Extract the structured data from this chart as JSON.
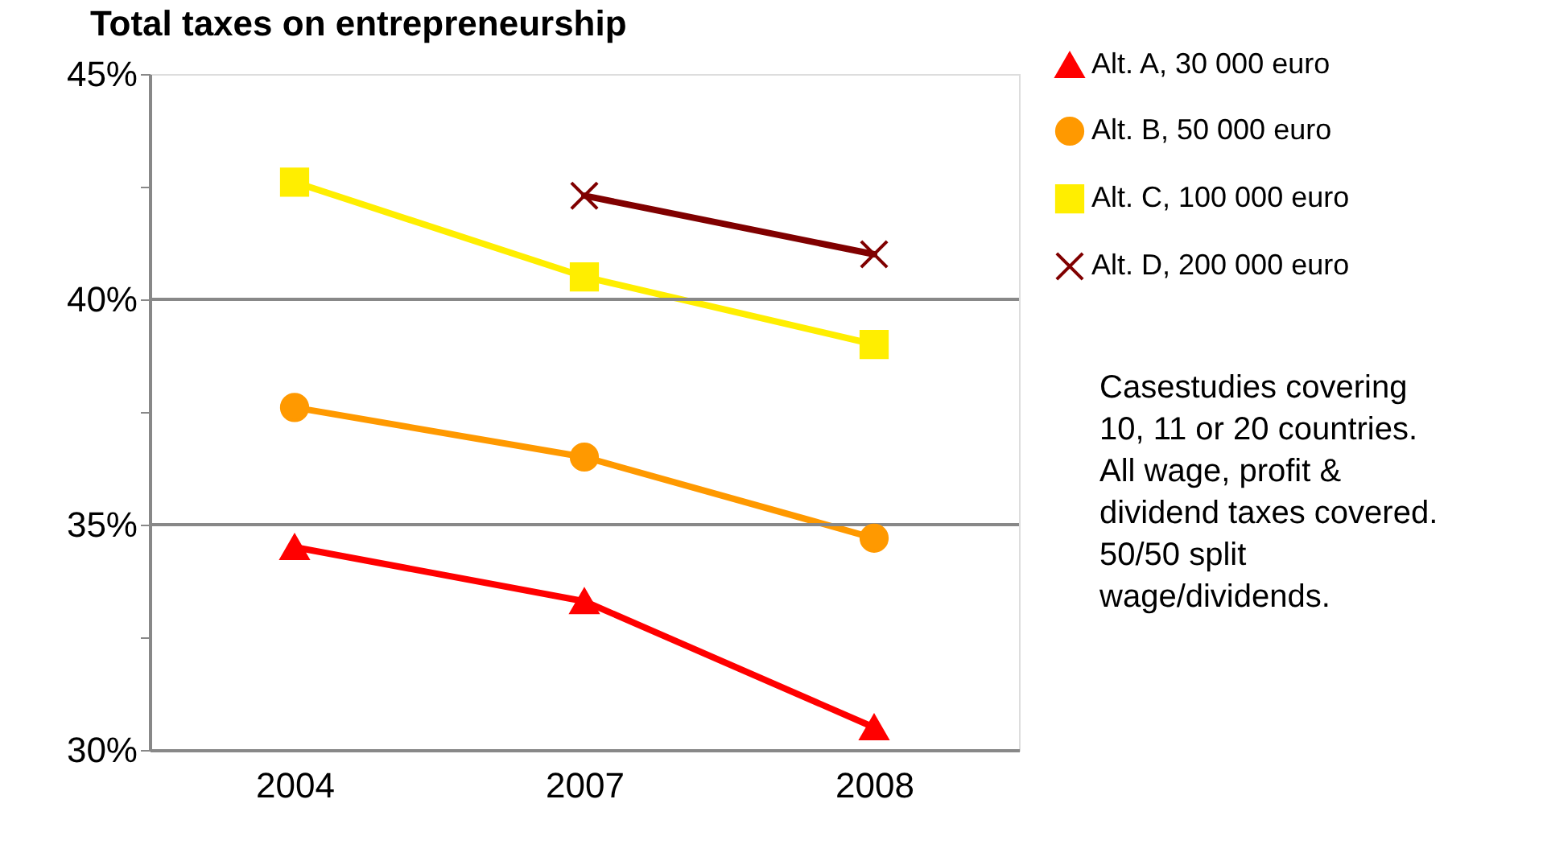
{
  "chart_data": {
    "type": "line",
    "title": "Total taxes on entrepreneurship",
    "categories": [
      "2004",
      "2007",
      "2008"
    ],
    "series": [
      {
        "name": "Alt. A, 30 000 euro",
        "color": "#ff0000",
        "marker": "triangle",
        "values": [
          34.5,
          33.3,
          30.5
        ]
      },
      {
        "name": "Alt. B, 50 000 euro",
        "color": "#ff9900",
        "marker": "circle",
        "values": [
          37.6,
          36.5,
          34.7
        ]
      },
      {
        "name": "Alt. C, 100 000 euro",
        "color": "#ffee00",
        "marker": "square",
        "values": [
          42.6,
          40.5,
          39.0
        ]
      },
      {
        "name": "Alt. D, 200 000 euro",
        "color": "#800000",
        "marker": "cross",
        "values": [
          null,
          42.3,
          41.0
        ]
      }
    ],
    "ylim": [
      30,
      45
    ],
    "yticks": [
      {
        "value": 30,
        "label": "30%"
      },
      {
        "value": 32.5,
        "label": null
      },
      {
        "value": 35,
        "label": "35%"
      },
      {
        "value": 37.5,
        "label": null
      },
      {
        "value": 40,
        "label": "40%"
      },
      {
        "value": 42.5,
        "label": null
      },
      {
        "value": 45,
        "label": "45%"
      }
    ],
    "grid": "y",
    "legend": "top right",
    "line_style": "solid",
    "annotations": [
      "Casestudies covering\n10, 11 or 20 countries.\nAll wage, profit &\ndividend taxes covered.\n50/50 split\nwage/dividends."
    ]
  }
}
